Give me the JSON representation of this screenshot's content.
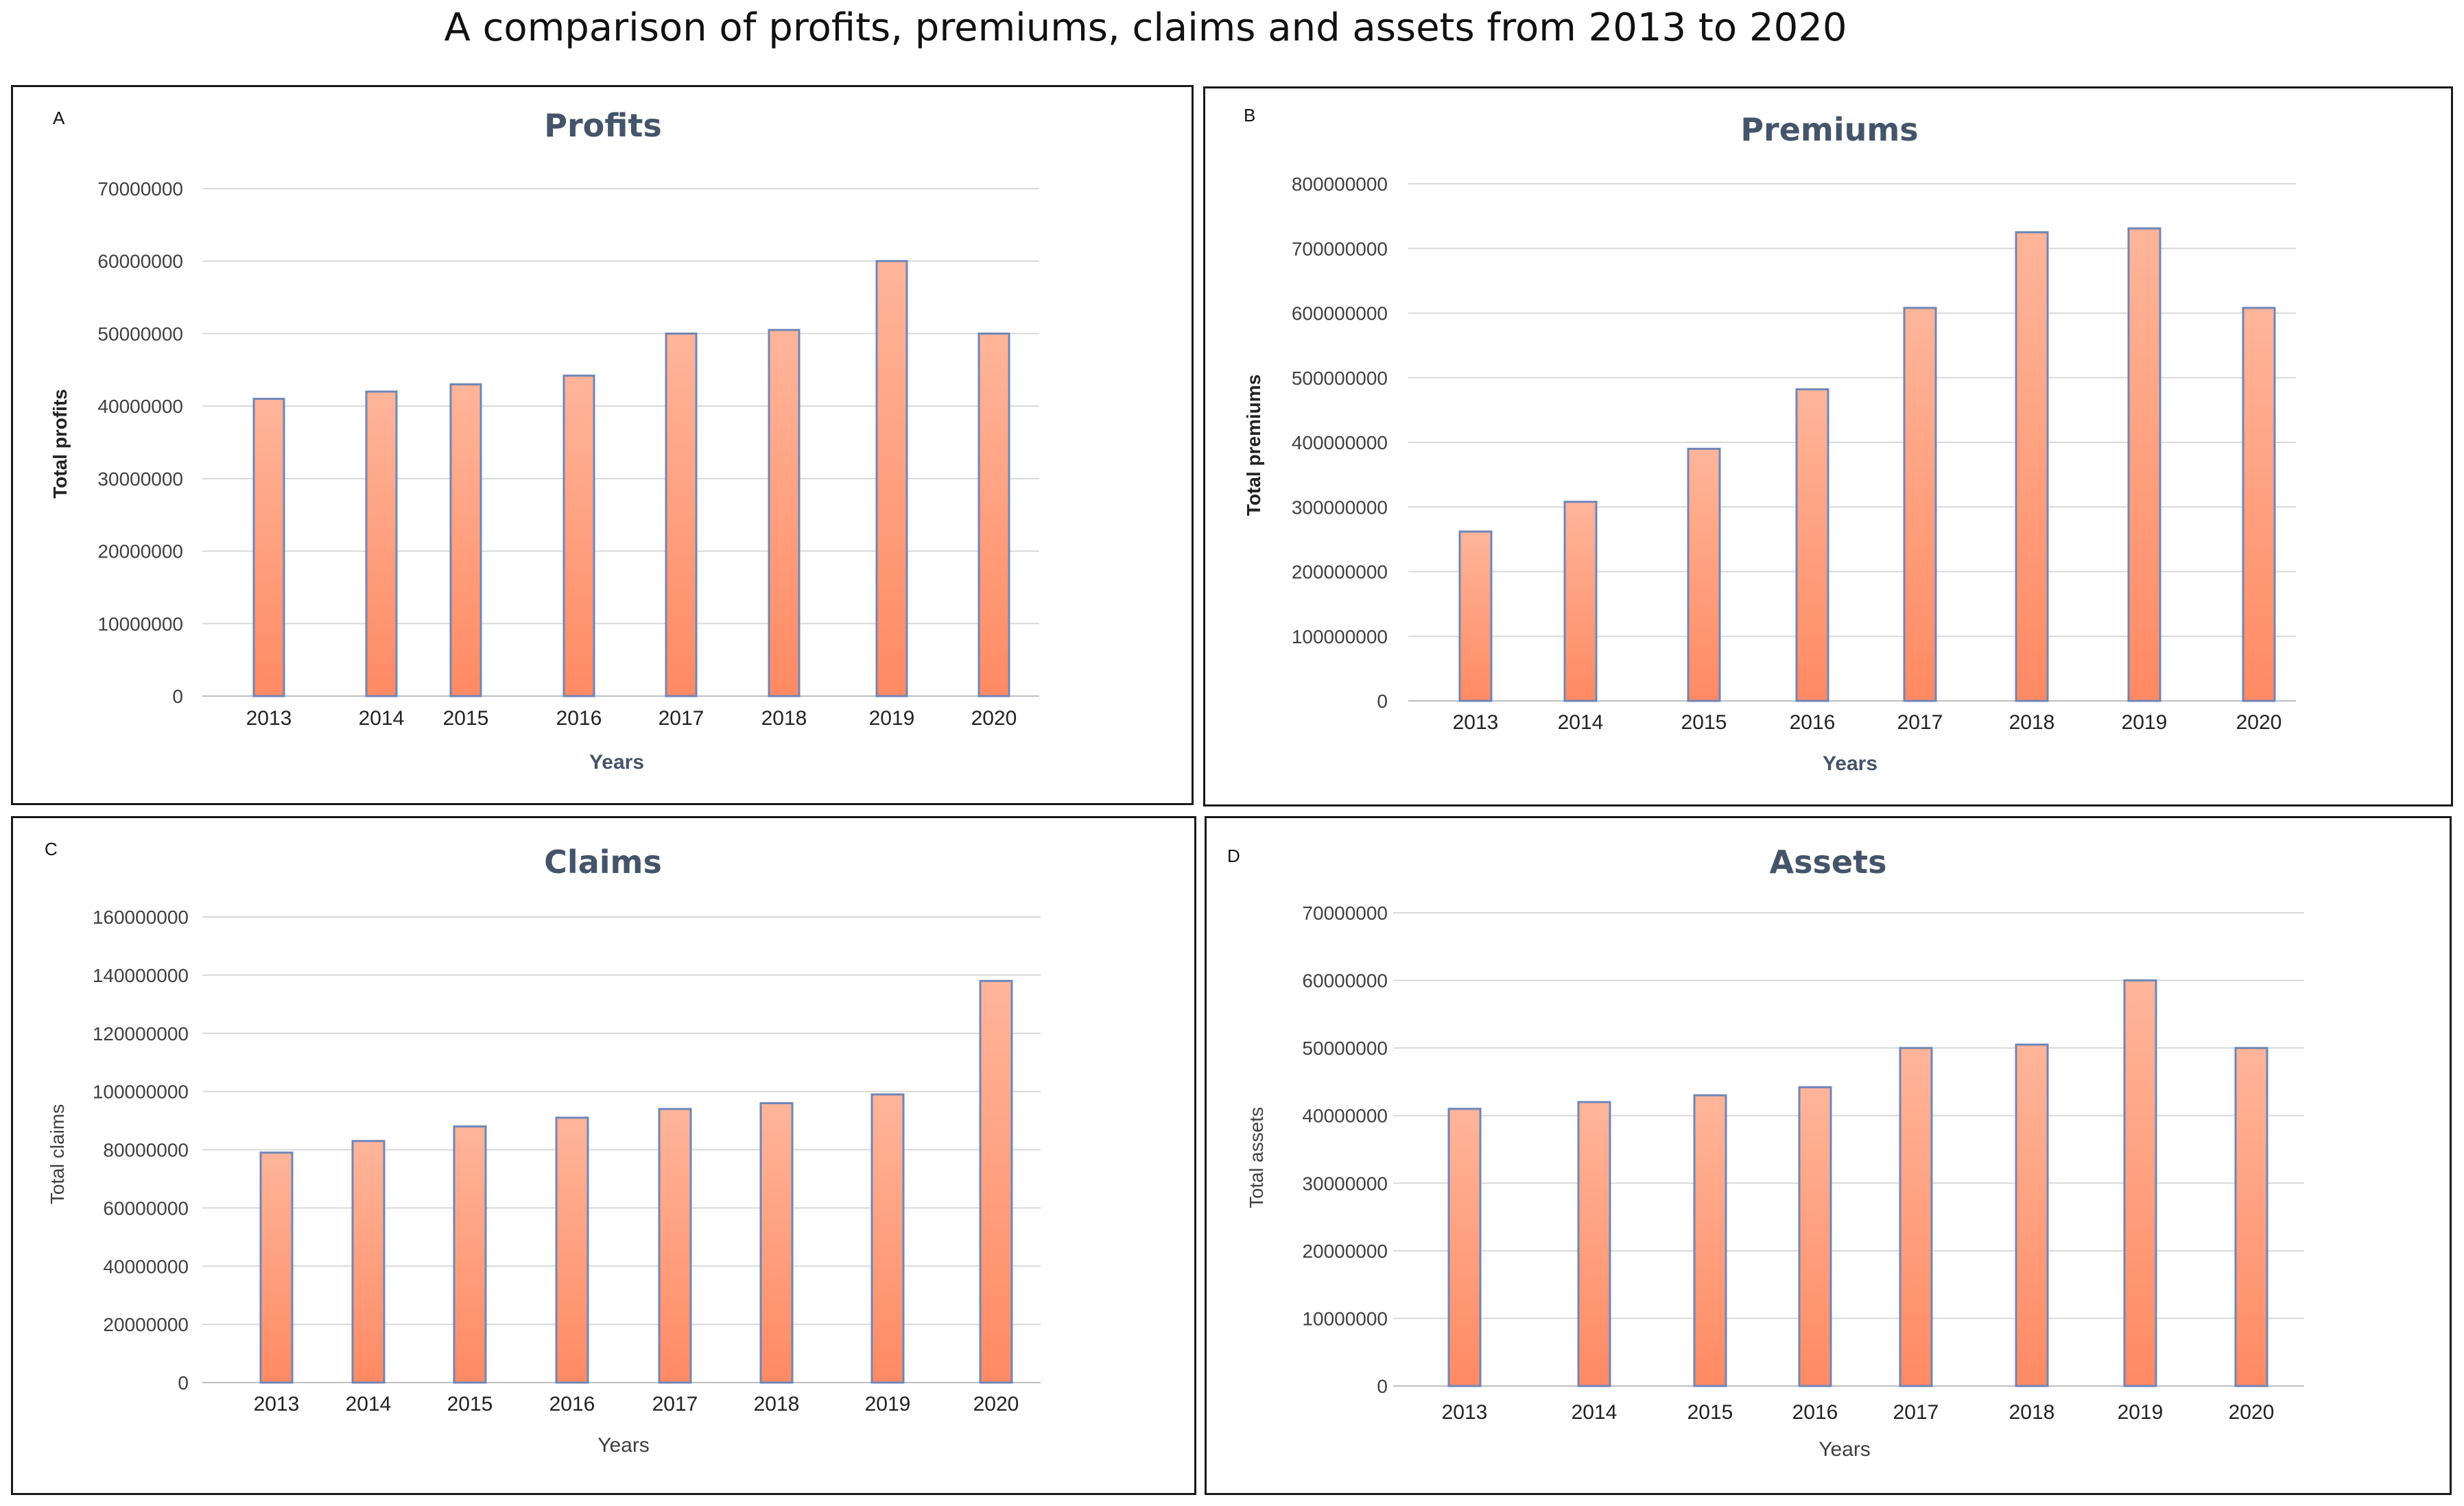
{
  "title": "A comparison of profits, premiums, claims and assets from 2013 to 2020",
  "colors": {
    "bar_top": "#ffb59a",
    "bar_bottom": "#ff8a63",
    "bar_edge": "#6f86b8",
    "title": "#44546a"
  },
  "chart_data": [
    {
      "panel": "A",
      "type": "bar",
      "title": "Profits",
      "xlabel": "Years",
      "ylabel": "Total profits",
      "categories": [
        "2013",
        "2014",
        "2015",
        "2016",
        "2017",
        "2018",
        "2019",
        "2020"
      ],
      "values": [
        41000000,
        42000000,
        43000000,
        44200000,
        50000000,
        50500000,
        60000000,
        50000000
      ],
      "yticks": [
        "0",
        "10000000",
        "20000000",
        "30000000",
        "40000000",
        "50000000",
        "60000000",
        "70000000"
      ],
      "ylim": [
        0,
        70000000
      ],
      "grid": true
    },
    {
      "panel": "B",
      "type": "bar",
      "title": "Premiums",
      "xlabel": "Years",
      "ylabel": "Total premiums",
      "categories": [
        "2013",
        "2014",
        "2015",
        "2016",
        "2017",
        "2018",
        "2019",
        "2020"
      ],
      "values": [
        262000000,
        308000000,
        390000000,
        482000000,
        608000000,
        725000000,
        731000000,
        608000000
      ],
      "yticks": [
        "0",
        "100000000",
        "200000000",
        "300000000",
        "400000000",
        "500000000",
        "600000000",
        "700000000",
        "800000000"
      ],
      "ylim": [
        0,
        800000000
      ],
      "grid": true
    },
    {
      "panel": "C",
      "type": "bar",
      "title": "Claims",
      "xlabel": "Years",
      "ylabel": "Total claims",
      "categories": [
        "2013",
        "2014",
        "2015",
        "2016",
        "2017",
        "2018",
        "2019",
        "2020"
      ],
      "values": [
        79000000,
        83000000,
        88000000,
        91000000,
        94000000,
        96000000,
        99000000,
        138000000
      ],
      "yticks": [
        "0",
        "20000000",
        "40000000",
        "60000000",
        "80000000",
        "100000000",
        "120000000",
        "140000000",
        "160000000"
      ],
      "ylim": [
        0,
        160000000
      ],
      "grid": true
    },
    {
      "panel": "D",
      "type": "bar",
      "title": "Assets",
      "xlabel": "Years",
      "ylabel": "Total assets",
      "categories": [
        "2013",
        "2014",
        "2015",
        "2016",
        "2017",
        "2018",
        "2019",
        "2020"
      ],
      "values": [
        41000000,
        42000000,
        43000000,
        44200000,
        50000000,
        50500000,
        60000000,
        50000000
      ],
      "yticks": [
        "0",
        "10000000",
        "20000000",
        "30000000",
        "40000000",
        "50000000",
        "60000000",
        "70000000"
      ],
      "ylim": [
        0,
        70000000
      ],
      "grid": true
    }
  ]
}
